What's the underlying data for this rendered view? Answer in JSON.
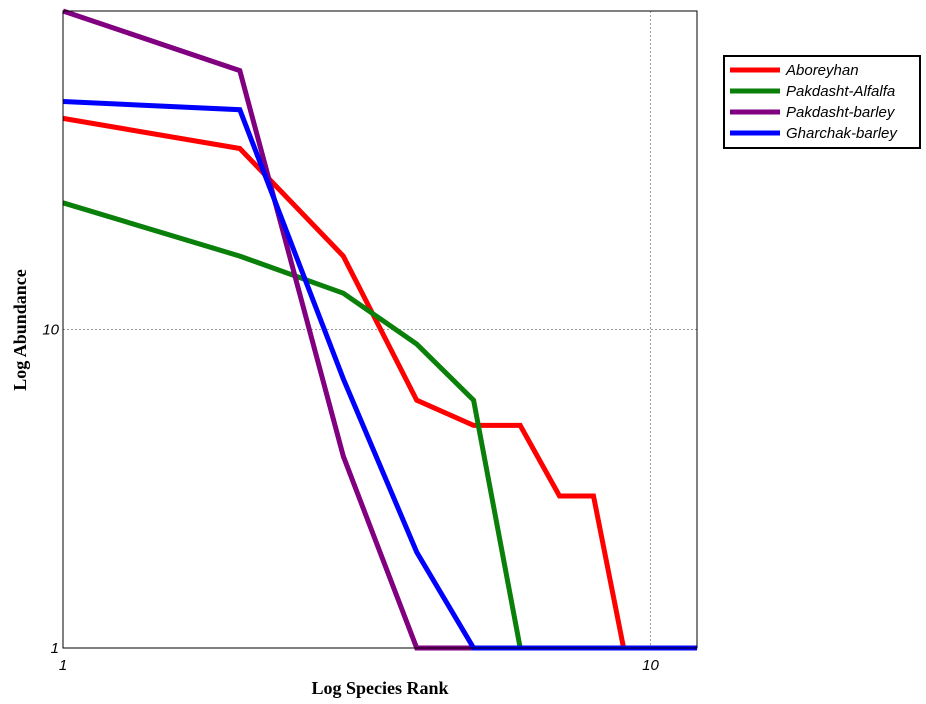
{
  "chart_data": {
    "type": "line",
    "title": "",
    "xlabel": "Log Species Rank",
    "ylabel": "Log Abundance",
    "x_scale": "log",
    "y_scale": "log",
    "xlim": [
      1,
      12
    ],
    "ylim": [
      1,
      100
    ],
    "x_ticks": [
      {
        "value": 1,
        "label": "1"
      },
      {
        "value": 10,
        "label": "10"
      }
    ],
    "y_ticks": [
      {
        "value": 1,
        "label": "1"
      },
      {
        "value": 10,
        "label": "10"
      }
    ],
    "grid": true,
    "legend_position": "top-right (outside plot)",
    "series": [
      {
        "name": "Aboreyhan",
        "color": "#ff0000",
        "x": [
          1,
          2,
          3,
          4,
          5,
          6,
          7,
          8,
          9,
          10,
          11,
          12
        ],
        "y": [
          46,
          37,
          17,
          6,
          5,
          5,
          3,
          3,
          1,
          1,
          1,
          1
        ]
      },
      {
        "name": "Pakdasht-Alfalfa",
        "color": "#0a800a",
        "x": [
          1,
          2,
          3,
          4,
          5,
          6,
          7,
          8,
          9,
          10,
          11,
          12
        ],
        "y": [
          25,
          17,
          13,
          9,
          6,
          1,
          1,
          1,
          1,
          1,
          1,
          1
        ]
      },
      {
        "name": "Pakdasht-barley",
        "color": "#800080",
        "x": [
          1,
          2,
          3,
          4,
          5,
          6,
          7,
          8,
          9,
          10,
          11,
          12
        ],
        "y": [
          100,
          65,
          4,
          1,
          1,
          1,
          1,
          1,
          1,
          1,
          1,
          1
        ]
      },
      {
        "name": "Gharchak-barley",
        "color": "#0000ff",
        "x": [
          1,
          2,
          3,
          4,
          5,
          6,
          7,
          8,
          9,
          10,
          11,
          12
        ],
        "y": [
          52,
          49,
          7,
          2,
          1,
          1,
          1,
          1,
          1,
          1,
          1,
          1
        ]
      }
    ]
  }
}
